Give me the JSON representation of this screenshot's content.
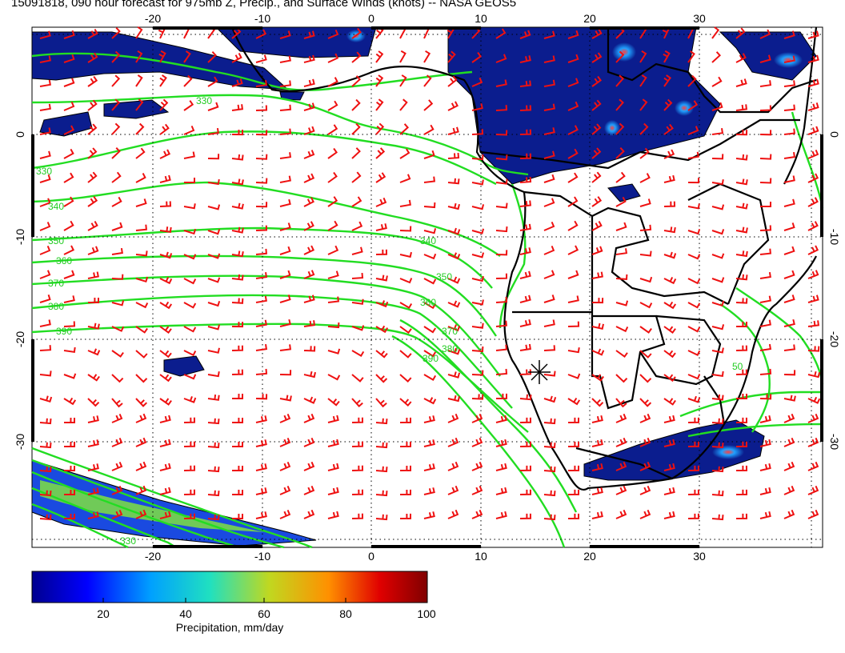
{
  "title": "15091818, 090 hour forecast for 975mb Z, Precip., and Surface Winds (knots) -- NASA GEOS5",
  "map": {
    "lon_labels": [
      "-20",
      "-10",
      "0",
      "10",
      "20",
      "30"
    ],
    "lat_labels": [
      "0",
      "-10",
      "-20",
      "-30"
    ],
    "contour_labels": [
      "330",
      "330",
      "340",
      "350",
      "360",
      "370",
      "380",
      "390",
      "340",
      "350",
      "360",
      "370",
      "380",
      "390",
      "50",
      "330"
    ],
    "marker": "+",
    "colors": {
      "contour": "#22dd22",
      "wind_barb": "#ee1111",
      "coastline": "#000000",
      "precip_low": "#0b1d8e",
      "precip_high": "#7a0000",
      "grid": "#000000"
    }
  },
  "colorbar": {
    "title": "Precipitation, mm/day",
    "tick_labels": [
      "20",
      "40",
      "60",
      "80",
      "100"
    ],
    "range": [
      0,
      100
    ],
    "colormap": [
      "#00008f",
      "#0000ff",
      "#00a0ff",
      "#20e0c0",
      "#c0d820",
      "#ff9000",
      "#e00000",
      "#800000"
    ]
  }
}
